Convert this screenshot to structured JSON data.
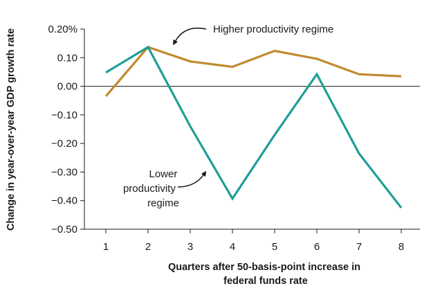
{
  "chart_data": {
    "type": "line",
    "title": "",
    "xlabel": [
      "Quarters after 50-basis-point increase in",
      "federal funds rate"
    ],
    "ylabel": "Change in year-over-year GDP growth rate",
    "x": [
      1,
      2,
      3,
      4,
      5,
      6,
      7,
      8
    ],
    "x_tick_labels": [
      "1",
      "2",
      "3",
      "4",
      "5",
      "6",
      "7",
      "8"
    ],
    "ylim": [
      -0.5,
      0.2
    ],
    "y_ticks": [
      0.2,
      0.1,
      0.0,
      -0.1,
      -0.2,
      -0.3,
      -0.4,
      -0.5
    ],
    "y_tick_labels": [
      "0.20%",
      "0.10",
      "0.00",
      "-0.10",
      "-0.20",
      "-0.30",
      "-0.40",
      "-0.50"
    ],
    "grid": false,
    "zero_line": true,
    "series": [
      {
        "key": "higher",
        "color": "#c08a2e",
        "values": [
          -0.035,
          0.137,
          0.087,
          0.068,
          0.124,
          0.096,
          0.042,
          0.035
        ]
      },
      {
        "key": "lower",
        "color": "#1f9e96",
        "values": [
          0.048,
          0.137,
          -0.14,
          -0.393,
          -0.17,
          0.042,
          -0.235,
          -0.425
        ]
      }
    ],
    "annotations": [
      {
        "target": "higher",
        "lines": [
          "Higher productivity regime"
        ]
      },
      {
        "target": "lower",
        "lines": [
          "Lower",
          "productivity",
          "regime"
        ]
      }
    ]
  }
}
